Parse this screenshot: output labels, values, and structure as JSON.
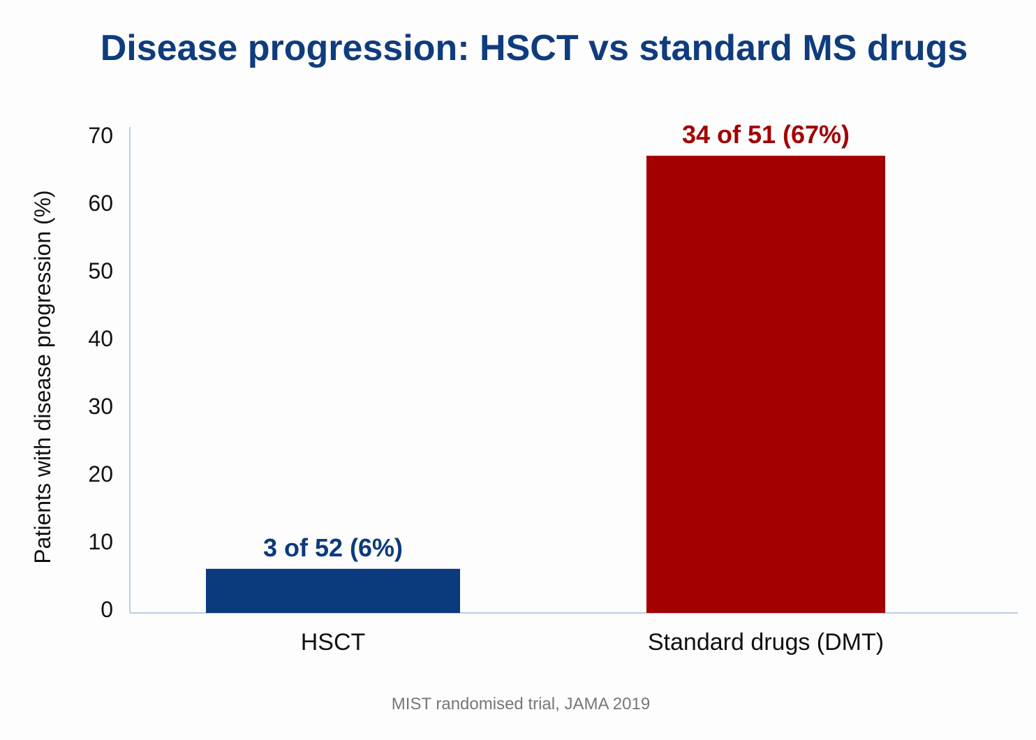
{
  "chart_data": {
    "type": "bar",
    "title": "Disease progression: HSCT vs standard MS drugs",
    "ylabel": "Patients with disease progression (%)",
    "xlabel": "",
    "ylim": [
      0,
      70
    ],
    "yticks": [
      0,
      10,
      20,
      30,
      40,
      50,
      60,
      70
    ],
    "categories": [
      "HSCT",
      "Standard drugs (DMT)"
    ],
    "values": [
      6,
      67
    ],
    "data_labels": [
      "3 of 52 (6%)",
      "34 of 51 (67%)"
    ],
    "colors": [
      "#0b3a7d",
      "#a30000"
    ],
    "grid": false,
    "legend": "none",
    "source": "MIST randomised trial, JAMA 2019"
  }
}
